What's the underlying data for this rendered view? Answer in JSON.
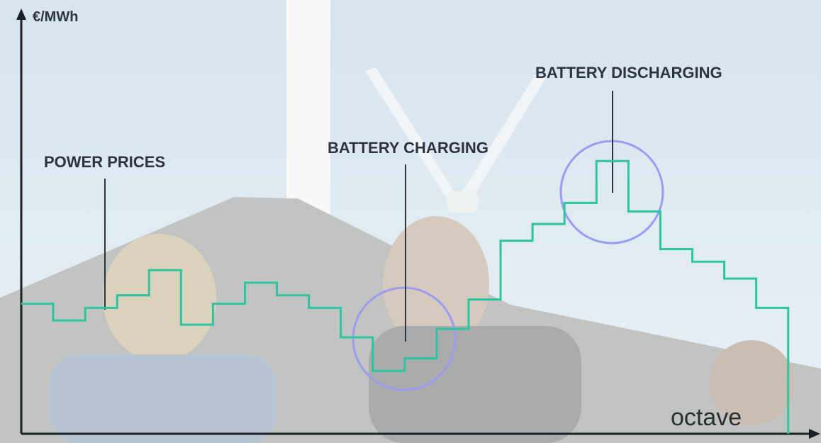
{
  "chart_data": {
    "type": "step",
    "y_label": "€/MWh",
    "x": [
      0,
      1,
      2,
      3,
      4,
      5,
      6,
      7,
      8,
      9,
      10,
      11,
      12,
      13,
      14,
      15,
      16,
      17,
      18,
      19,
      20,
      21,
      22,
      23
    ],
    "series": [
      {
        "name": "POWER PRICES",
        "color": "#2ec4a0",
        "values": [
          31,
          27,
          30,
          33,
          39,
          26,
          31,
          36,
          33,
          30,
          23,
          15,
          18,
          25,
          32,
          46,
          50,
          55,
          65,
          53,
          44,
          41,
          37,
          30
        ]
      }
    ],
    "xlim": [
      0,
      24.85
    ],
    "ylim": [
      0,
      100
    ],
    "annotations": [
      {
        "text": "BATTERY CHARGING"
      },
      {
        "text": "BATTERY DISCHARGING"
      }
    ],
    "logo": "octave"
  }
}
